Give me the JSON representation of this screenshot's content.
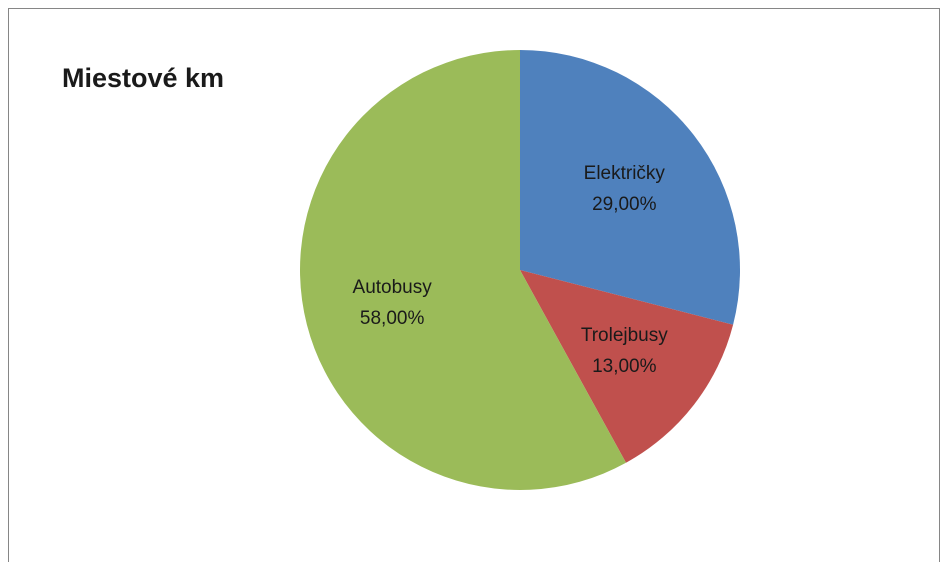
{
  "chart_data": {
    "type": "pie",
    "title": "Miestové km",
    "categories": [
      "Električky",
      "Trolejbusy",
      "Autobusy"
    ],
    "values": [
      29,
      13,
      58
    ],
    "value_labels": [
      "29,00%",
      "13,00%",
      "58,00%"
    ],
    "colors": [
      "#4f81bd",
      "#c0504d",
      "#9bbb59"
    ]
  }
}
